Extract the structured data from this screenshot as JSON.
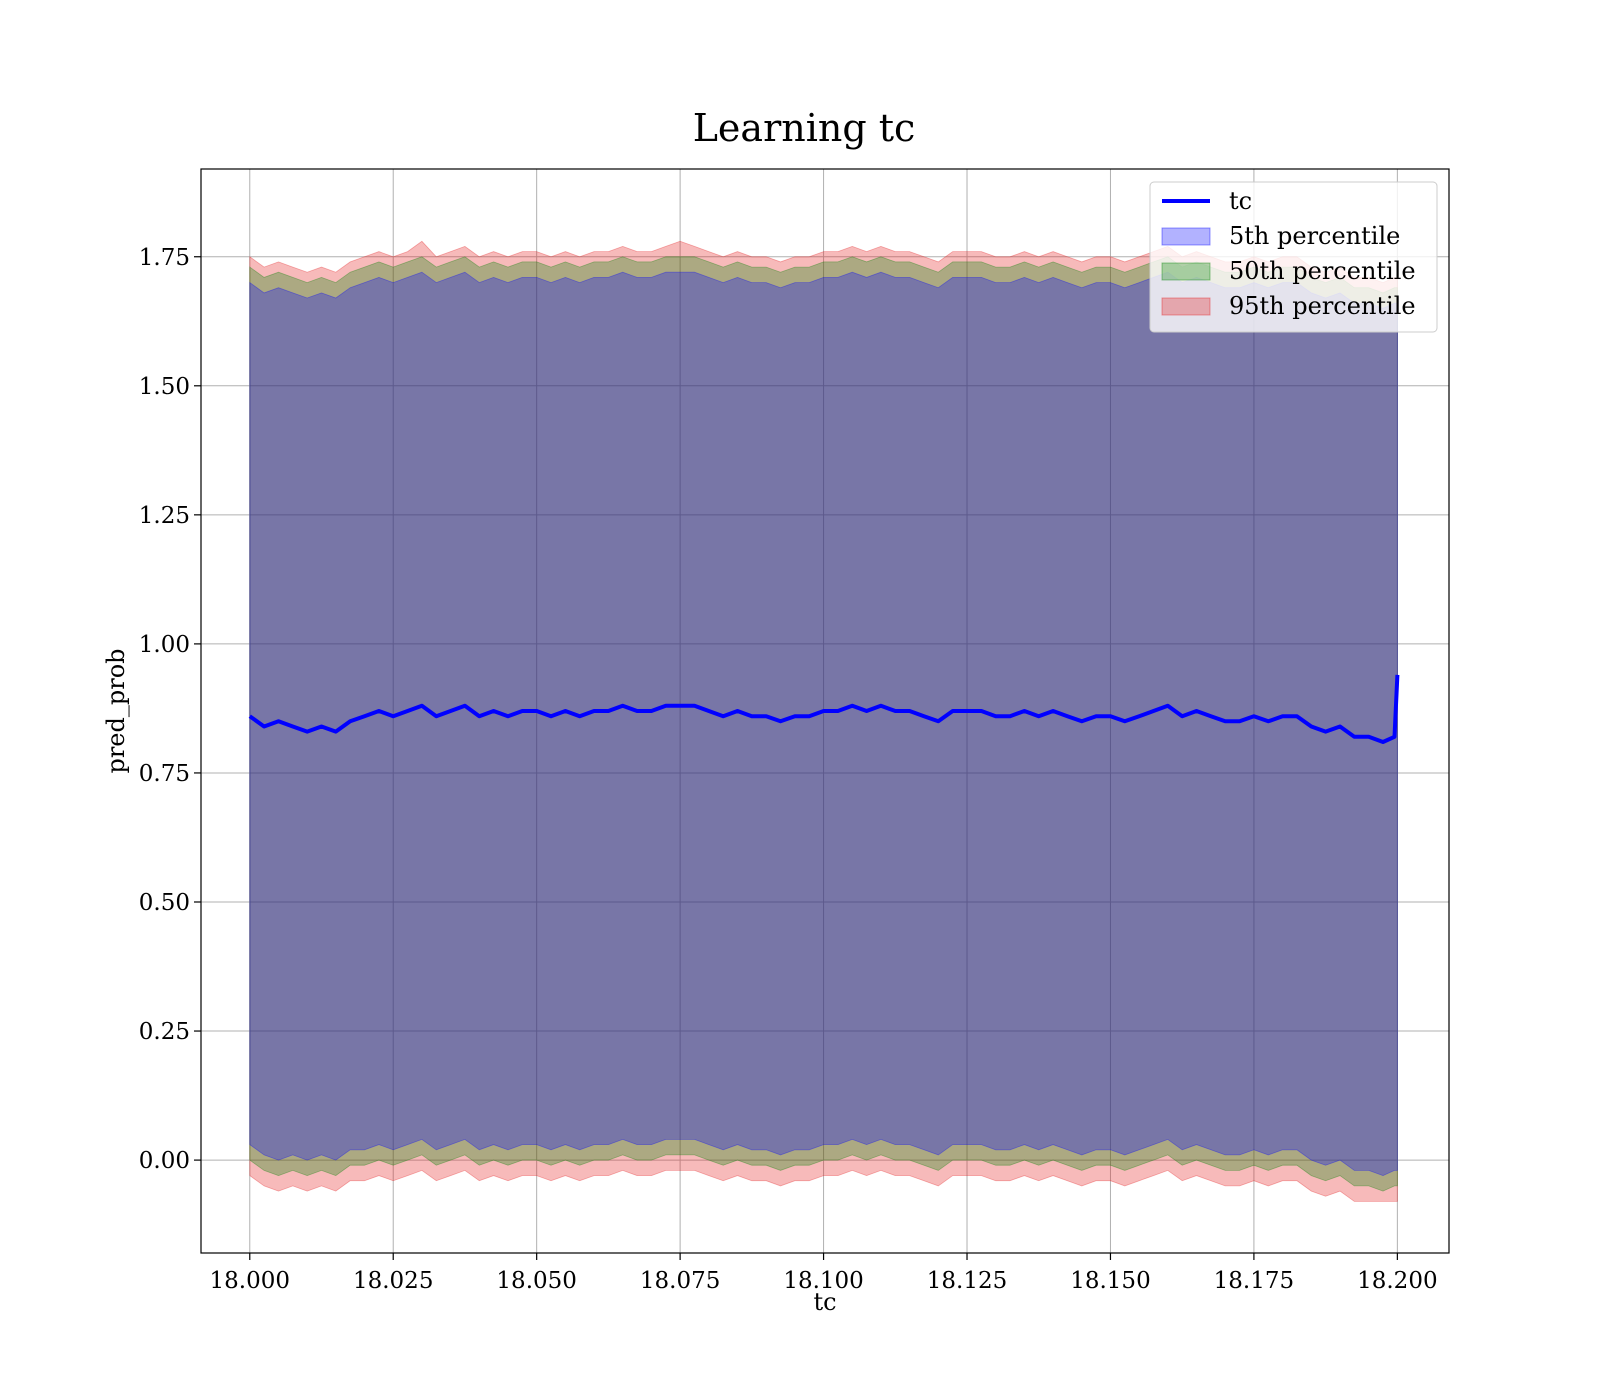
{
  "chart_data": {
    "type": "area",
    "title": "Learning tc",
    "xlabel": "tc",
    "ylabel": "pred_prob",
    "xlim": [
      17.9915,
      18.209
    ],
    "ylim": [
      -0.18,
      1.92
    ],
    "xticks": [
      "18.000",
      "18.025",
      "18.050",
      "18.075",
      "18.100",
      "18.125",
      "18.150",
      "18.175",
      "18.200"
    ],
    "yticks": [
      "0.00",
      "0.25",
      "0.50",
      "0.75",
      "1.00",
      "1.25",
      "1.50",
      "1.75"
    ],
    "grid": true,
    "legend_position": "top-right",
    "x": [
      18.0,
      18.0025,
      18.005,
      18.0075,
      18.01,
      18.0125,
      18.015,
      18.0175,
      18.02,
      18.0225,
      18.025,
      18.0275,
      18.03,
      18.0325,
      18.035,
      18.0375,
      18.04,
      18.0425,
      18.045,
      18.0475,
      18.05,
      18.0525,
      18.055,
      18.0575,
      18.06,
      18.0625,
      18.065,
      18.0675,
      18.07,
      18.0725,
      18.075,
      18.0775,
      18.08,
      18.0825,
      18.085,
      18.0875,
      18.09,
      18.0925,
      18.095,
      18.0975,
      18.1,
      18.1025,
      18.105,
      18.1075,
      18.11,
      18.1125,
      18.115,
      18.1175,
      18.12,
      18.1225,
      18.125,
      18.1275,
      18.13,
      18.1325,
      18.135,
      18.1375,
      18.14,
      18.1425,
      18.145,
      18.1475,
      18.15,
      18.1525,
      18.155,
      18.1575,
      18.16,
      18.1625,
      18.165,
      18.1675,
      18.17,
      18.1725,
      18.175,
      18.1775,
      18.18,
      18.1825,
      18.185,
      18.1875,
      18.19,
      18.1925,
      18.195,
      18.1975,
      18.1995,
      18.2
    ],
    "series": [
      {
        "name": "tc",
        "kind": "line",
        "color": "#0000ff",
        "values": [
          0.86,
          0.84,
          0.85,
          0.84,
          0.83,
          0.84,
          0.83,
          0.85,
          0.86,
          0.87,
          0.86,
          0.87,
          0.88,
          0.86,
          0.87,
          0.88,
          0.86,
          0.87,
          0.86,
          0.87,
          0.87,
          0.86,
          0.87,
          0.86,
          0.87,
          0.87,
          0.88,
          0.87,
          0.87,
          0.88,
          0.88,
          0.88,
          0.87,
          0.86,
          0.87,
          0.86,
          0.86,
          0.85,
          0.86,
          0.86,
          0.87,
          0.87,
          0.88,
          0.87,
          0.88,
          0.87,
          0.87,
          0.86,
          0.85,
          0.87,
          0.87,
          0.87,
          0.86,
          0.86,
          0.87,
          0.86,
          0.87,
          0.86,
          0.85,
          0.86,
          0.86,
          0.85,
          0.86,
          0.87,
          0.88,
          0.86,
          0.87,
          0.86,
          0.85,
          0.85,
          0.86,
          0.85,
          0.86,
          0.86,
          0.84,
          0.83,
          0.84,
          0.82,
          0.82,
          0.81,
          0.82,
          0.94
        ]
      },
      {
        "name": "5th percentile",
        "kind": "band",
        "color": "#0000ff",
        "lower": [
          0.03,
          0.01,
          0.0,
          0.01,
          0.0,
          0.01,
          0.0,
          0.02,
          0.02,
          0.03,
          0.02,
          0.03,
          0.04,
          0.02,
          0.03,
          0.04,
          0.02,
          0.03,
          0.02,
          0.03,
          0.03,
          0.02,
          0.03,
          0.02,
          0.03,
          0.03,
          0.04,
          0.03,
          0.03,
          0.04,
          0.04,
          0.04,
          0.03,
          0.02,
          0.03,
          0.02,
          0.02,
          0.01,
          0.02,
          0.02,
          0.03,
          0.03,
          0.04,
          0.03,
          0.04,
          0.03,
          0.03,
          0.02,
          0.01,
          0.03,
          0.03,
          0.03,
          0.02,
          0.02,
          0.03,
          0.02,
          0.03,
          0.02,
          0.01,
          0.02,
          0.02,
          0.01,
          0.02,
          0.03,
          0.04,
          0.02,
          0.03,
          0.02,
          0.01,
          0.01,
          0.02,
          0.01,
          0.02,
          0.02,
          0.0,
          -0.01,
          0.0,
          -0.02,
          -0.02,
          -0.03,
          -0.02,
          -0.02
        ],
        "upper": [
          1.7,
          1.68,
          1.69,
          1.68,
          1.67,
          1.68,
          1.67,
          1.69,
          1.7,
          1.71,
          1.7,
          1.71,
          1.72,
          1.7,
          1.71,
          1.72,
          1.7,
          1.71,
          1.7,
          1.71,
          1.71,
          1.7,
          1.71,
          1.7,
          1.71,
          1.71,
          1.72,
          1.71,
          1.71,
          1.72,
          1.72,
          1.72,
          1.71,
          1.7,
          1.71,
          1.7,
          1.7,
          1.69,
          1.7,
          1.7,
          1.71,
          1.71,
          1.72,
          1.71,
          1.72,
          1.71,
          1.71,
          1.7,
          1.69,
          1.71,
          1.71,
          1.71,
          1.7,
          1.7,
          1.71,
          1.7,
          1.71,
          1.7,
          1.69,
          1.7,
          1.7,
          1.69,
          1.7,
          1.71,
          1.72,
          1.7,
          1.71,
          1.7,
          1.69,
          1.69,
          1.7,
          1.69,
          1.7,
          1.7,
          1.68,
          1.67,
          1.68,
          1.66,
          1.66,
          1.65,
          1.66,
          1.66
        ]
      },
      {
        "name": "50th percentile",
        "kind": "band",
        "color": "#008000",
        "lower": [
          0.0,
          -0.02,
          -0.03,
          -0.02,
          -0.03,
          -0.02,
          -0.03,
          -0.01,
          -0.01,
          0.0,
          -0.01,
          0.0,
          0.01,
          -0.01,
          0.0,
          0.01,
          -0.01,
          0.0,
          -0.01,
          0.0,
          0.0,
          -0.01,
          0.0,
          -0.01,
          0.0,
          0.0,
          0.01,
          0.0,
          0.0,
          0.01,
          0.01,
          0.01,
          0.0,
          -0.01,
          0.0,
          -0.01,
          -0.01,
          -0.02,
          -0.01,
          -0.01,
          0.0,
          0.0,
          0.01,
          0.0,
          0.01,
          0.0,
          0.0,
          -0.01,
          -0.02,
          0.0,
          0.0,
          0.0,
          -0.01,
          -0.01,
          0.0,
          -0.01,
          0.0,
          -0.01,
          -0.02,
          -0.01,
          -0.01,
          -0.02,
          -0.01,
          0.0,
          0.01,
          -0.01,
          0.0,
          -0.01,
          -0.02,
          -0.02,
          -0.01,
          -0.02,
          -0.01,
          -0.01,
          -0.03,
          -0.04,
          -0.03,
          -0.05,
          -0.05,
          -0.06,
          -0.05,
          -0.05
        ],
        "upper": [
          1.73,
          1.71,
          1.72,
          1.71,
          1.7,
          1.71,
          1.7,
          1.72,
          1.73,
          1.74,
          1.73,
          1.74,
          1.75,
          1.73,
          1.74,
          1.75,
          1.73,
          1.74,
          1.73,
          1.74,
          1.74,
          1.73,
          1.74,
          1.73,
          1.74,
          1.74,
          1.75,
          1.74,
          1.74,
          1.75,
          1.75,
          1.75,
          1.74,
          1.73,
          1.74,
          1.73,
          1.73,
          1.72,
          1.73,
          1.73,
          1.74,
          1.74,
          1.75,
          1.74,
          1.75,
          1.74,
          1.74,
          1.73,
          1.72,
          1.74,
          1.74,
          1.74,
          1.73,
          1.73,
          1.74,
          1.73,
          1.74,
          1.73,
          1.72,
          1.73,
          1.73,
          1.72,
          1.73,
          1.74,
          1.75,
          1.73,
          1.74,
          1.73,
          1.72,
          1.72,
          1.73,
          1.72,
          1.73,
          1.73,
          1.71,
          1.7,
          1.71,
          1.69,
          1.69,
          1.68,
          1.69,
          1.69
        ]
      },
      {
        "name": "95th percentile",
        "kind": "band",
        "color": "#e31a1c",
        "lower": [
          -0.03,
          -0.05,
          -0.06,
          -0.05,
          -0.06,
          -0.05,
          -0.06,
          -0.04,
          -0.04,
          -0.03,
          -0.04,
          -0.03,
          -0.02,
          -0.04,
          -0.03,
          -0.02,
          -0.04,
          -0.03,
          -0.04,
          -0.03,
          -0.03,
          -0.04,
          -0.03,
          -0.04,
          -0.03,
          -0.03,
          -0.02,
          -0.03,
          -0.03,
          -0.02,
          -0.02,
          -0.02,
          -0.03,
          -0.04,
          -0.03,
          -0.04,
          -0.04,
          -0.05,
          -0.04,
          -0.04,
          -0.03,
          -0.03,
          -0.02,
          -0.03,
          -0.02,
          -0.03,
          -0.03,
          -0.04,
          -0.05,
          -0.03,
          -0.03,
          -0.03,
          -0.04,
          -0.04,
          -0.03,
          -0.04,
          -0.03,
          -0.04,
          -0.05,
          -0.04,
          -0.04,
          -0.05,
          -0.04,
          -0.03,
          -0.02,
          -0.04,
          -0.03,
          -0.04,
          -0.05,
          -0.05,
          -0.04,
          -0.05,
          -0.04,
          -0.04,
          -0.06,
          -0.07,
          -0.06,
          -0.08,
          -0.08,
          -0.08,
          -0.08,
          -0.08
        ],
        "upper": [
          1.75,
          1.73,
          1.74,
          1.73,
          1.72,
          1.73,
          1.72,
          1.74,
          1.75,
          1.76,
          1.75,
          1.76,
          1.78,
          1.75,
          1.76,
          1.77,
          1.75,
          1.76,
          1.75,
          1.76,
          1.76,
          1.75,
          1.76,
          1.75,
          1.76,
          1.76,
          1.77,
          1.76,
          1.76,
          1.77,
          1.78,
          1.77,
          1.76,
          1.75,
          1.76,
          1.75,
          1.75,
          1.74,
          1.75,
          1.75,
          1.76,
          1.76,
          1.77,
          1.76,
          1.77,
          1.76,
          1.76,
          1.75,
          1.74,
          1.76,
          1.76,
          1.76,
          1.75,
          1.75,
          1.76,
          1.75,
          1.76,
          1.75,
          1.74,
          1.75,
          1.75,
          1.74,
          1.75,
          1.76,
          1.77,
          1.75,
          1.76,
          1.75,
          1.74,
          1.74,
          1.75,
          1.74,
          1.75,
          1.75,
          1.73,
          1.72,
          1.73,
          1.71,
          1.71,
          1.7,
          1.71,
          1.71
        ]
      }
    ]
  }
}
